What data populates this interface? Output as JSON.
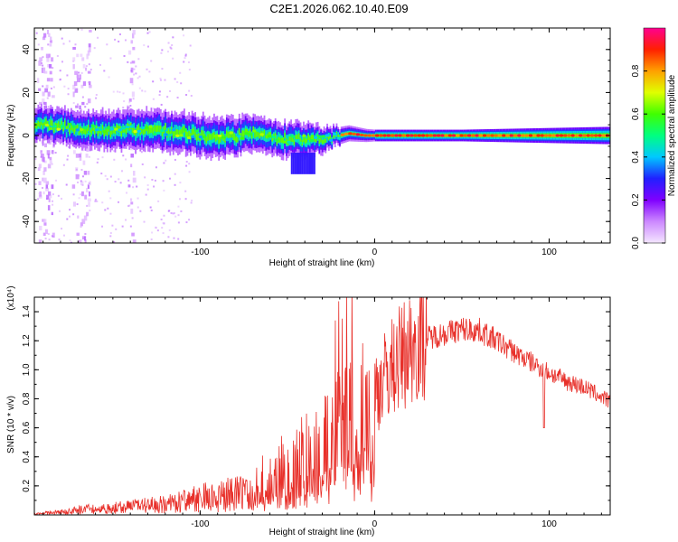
{
  "title": "C2E1.2026.062.10.40.E09",
  "chart_data": [
    {
      "type": "heatmap",
      "title": "C2E1.2026.062.10.40.E09",
      "xlabel": "Height of straight line (km)",
      "ylabel": "Frequency (Hz)",
      "xlim": [
        -195,
        135
      ],
      "ylim": [
        -50,
        50
      ],
      "xticks": [
        -100,
        0,
        100
      ],
      "xtick_labels": [
        "-100",
        "0",
        "100"
      ],
      "yticks": [
        -40,
        -20,
        0,
        20,
        40
      ],
      "ytick_labels": [
        "-40",
        "-20",
        "0",
        "20",
        "40"
      ],
      "colorbar": {
        "label": "Normalized spectral amplitude",
        "range": [
          0,
          1
        ],
        "ticks": [
          0.0,
          0.2,
          0.4,
          0.6,
          0.8
        ],
        "tick_labels": [
          "0.0",
          "0.2",
          "0.4",
          "0.6",
          "0.8"
        ],
        "colors": [
          "#f4e6ff",
          "#cc88ff",
          "#8000ff",
          "#2020ff",
          "#00c8ff",
          "#00ff80",
          "#40ff00",
          "#e0ff00",
          "#ffa000",
          "#ff2000",
          "#ff0090"
        ]
      },
      "ridge_center_hz": [
        {
          "x": -190,
          "y": 5
        },
        {
          "x": -170,
          "y": 3
        },
        {
          "x": -150,
          "y": 2
        },
        {
          "x": -130,
          "y": 3
        },
        {
          "x": -110,
          "y": 1
        },
        {
          "x": -90,
          "y": -1
        },
        {
          "x": -70,
          "y": 1
        },
        {
          "x": -50,
          "y": -2
        },
        {
          "x": -30,
          "y": -2
        },
        {
          "x": -15,
          "y": 1
        },
        {
          "x": -5,
          "y": 0
        },
        {
          "x": 10,
          "y": 0
        },
        {
          "x": 40,
          "y": 0
        },
        {
          "x": 80,
          "y": 0
        },
        {
          "x": 120,
          "y": 0
        }
      ],
      "ridge_halfwidth_hz": [
        {
          "x": -190,
          "y": 6
        },
        {
          "x": -130,
          "y": 7
        },
        {
          "x": -90,
          "y": 7
        },
        {
          "x": -60,
          "y": 6
        },
        {
          "x": -40,
          "y": 6
        },
        {
          "x": -20,
          "y": 3
        },
        {
          "x": 0,
          "y": 2
        },
        {
          "x": 50,
          "y": 2
        },
        {
          "x": 135,
          "y": 3
        }
      ]
    },
    {
      "type": "line",
      "xlabel": "Height of straight line (km)",
      "ylabel": "SNR (10 * v/v)",
      "y_multiplier": "(x10⁴)",
      "xlim": [
        -195,
        135
      ],
      "ylim": [
        0,
        1.5
      ],
      "xticks": [
        -100,
        0,
        100
      ],
      "xtick_labels": [
        "-100",
        "0",
        "100"
      ],
      "yticks": [
        0.2,
        0.4,
        0.6,
        0.8,
        1.0,
        1.2,
        1.4
      ],
      "ytick_labels": [
        "0.2",
        "0.4",
        "0.6",
        "0.8",
        "1.0",
        "1.2",
        "1.4"
      ],
      "series": [
        {
          "name": "SNR",
          "color": "#e8302a",
          "x": [
            -195,
            -180,
            -160,
            -140,
            -120,
            -110,
            -100,
            -90,
            -80,
            -70,
            -60,
            -50,
            -40,
            -30,
            -20,
            -10,
            0,
            10,
            20,
            30,
            40,
            50,
            60,
            70,
            80,
            90,
            100,
            110,
            120,
            135
          ],
          "y": [
            0.01,
            0.03,
            0.06,
            0.08,
            0.1,
            0.13,
            0.16,
            0.18,
            0.2,
            0.2,
            0.26,
            0.34,
            0.4,
            0.48,
            0.6,
            0.72,
            0.85,
            1.02,
            1.15,
            1.22,
            1.25,
            1.28,
            1.27,
            1.2,
            1.12,
            1.05,
            0.98,
            0.92,
            0.88,
            0.78
          ]
        }
      ]
    }
  ]
}
